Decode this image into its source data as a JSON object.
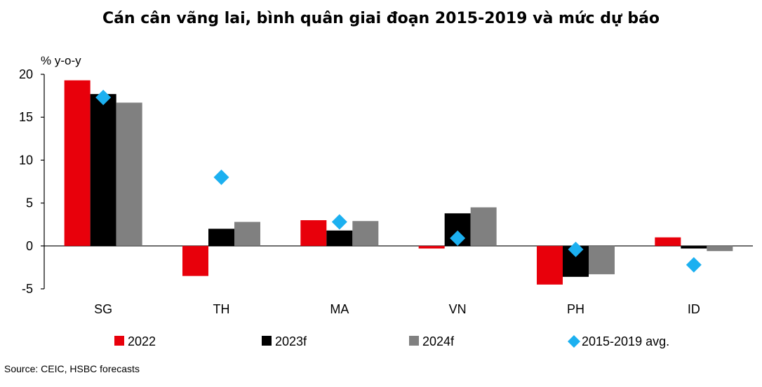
{
  "chart_data": {
    "type": "bar",
    "title": "Cán cân vãng lai, bình quân giai đoạn 2015-2019 và mức dự báo",
    "ylabel": "% y-o-y",
    "xlabel": "",
    "ylim": [
      -5,
      20
    ],
    "yticks": [
      20,
      15,
      10,
      5,
      0,
      -5
    ],
    "ytick_labels": [
      "20",
      "15",
      "10",
      "5",
      "0",
      "-5"
    ],
    "grid": false,
    "legend": "bottom",
    "categories": [
      "SG",
      "TH",
      "MA",
      "VN",
      "PH",
      "ID"
    ],
    "series": [
      {
        "name": "2022",
        "type": "bar",
        "color": "#e8000b",
        "values": [
          19.3,
          -3.5,
          3.0,
          -0.3,
          -4.5,
          1.0
        ]
      },
      {
        "name": "2023f",
        "type": "bar",
        "color": "#000000",
        "values": [
          17.7,
          2.0,
          1.8,
          3.8,
          -3.6,
          -0.3
        ]
      },
      {
        "name": "2024f",
        "type": "bar",
        "color": "#808080",
        "values": [
          16.7,
          2.8,
          2.9,
          4.5,
          -3.3,
          -0.6
        ]
      },
      {
        "name": "2015-2019 avg.",
        "type": "marker",
        "color": "#1cb0f0",
        "values": [
          17.3,
          8.0,
          2.8,
          0.9,
          -0.4,
          -2.2
        ]
      }
    ]
  },
  "source": "Source: CEIC, HSBC forecasts"
}
